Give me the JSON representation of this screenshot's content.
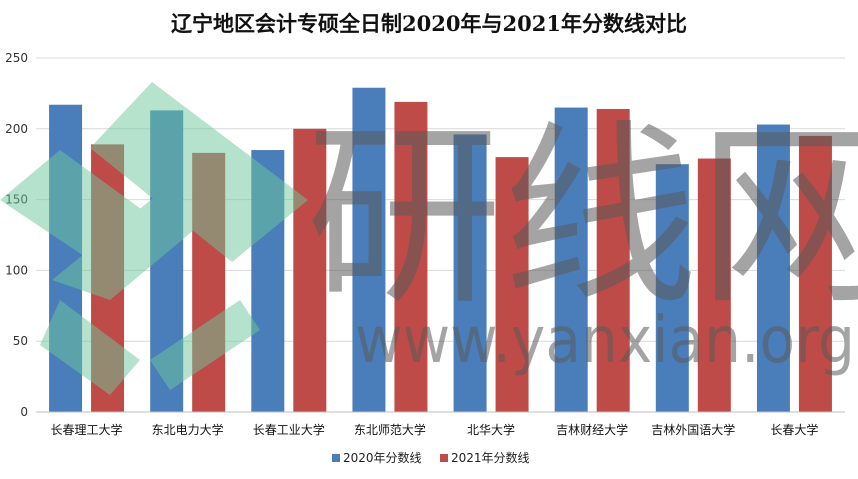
{
  "chart_data": {
    "type": "bar",
    "title": "辽宁地区会计专硕全日制2020年与2021年分数线对比",
    "xlabel": "",
    "ylabel": "",
    "ylim": [
      0,
      250
    ],
    "yticks": [
      0,
      50,
      100,
      150,
      200,
      250
    ],
    "grid": true,
    "legend_position": "bottom",
    "categories": [
      "长春理工大学",
      "东北电力大学",
      "长春工业大学",
      "东北师范大学",
      "北华大学",
      "吉林财经大学",
      "吉林外国语大学",
      "长春大学"
    ],
    "series": [
      {
        "name": "2020年分数线",
        "color": "#4A7EBB",
        "values": [
          217,
          213,
          185,
          229,
          196,
          215,
          175,
          203
        ]
      },
      {
        "name": "2021年分数线",
        "color": "#BE4B48",
        "values": [
          189,
          183,
          200,
          219,
          180,
          214,
          179,
          195
        ]
      }
    ]
  },
  "watermark": {
    "text_large": "研线网",
    "text_url": "www.yanxian.org"
  }
}
